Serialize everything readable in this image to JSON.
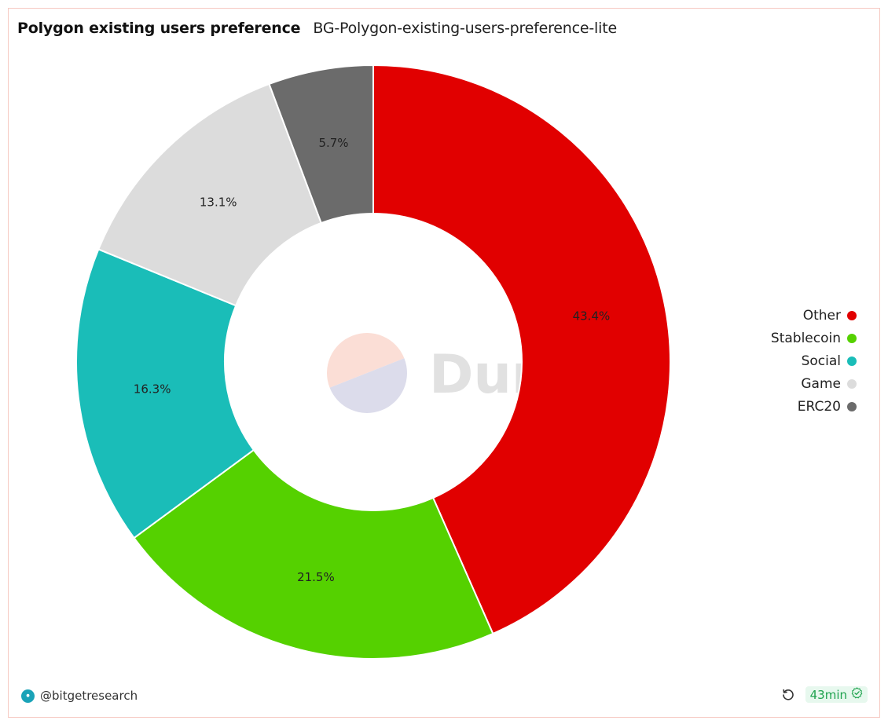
{
  "header": {
    "title": "Polygon existing users preference",
    "subtitle": "BG-Polygon-existing-users-preference-lite"
  },
  "watermark": {
    "text": "Dune",
    "colors": [
      "#fbded6",
      "#dcdceb"
    ]
  },
  "chart_data": {
    "type": "pie",
    "donut": true,
    "title": "Polygon existing users preference",
    "start_angle_deg": 0,
    "direction": "clockwise",
    "series": [
      {
        "name": "Other",
        "value": 43.4,
        "label": "43.4%",
        "color": "#e10000"
      },
      {
        "name": "Stablecoin",
        "value": 21.5,
        "label": "21.5%",
        "color": "#55d100"
      },
      {
        "name": "Social",
        "value": 16.3,
        "label": "16.3%",
        "color": "#1abdb8"
      },
      {
        "name": "Game",
        "value": 13.1,
        "label": "13.1%",
        "color": "#dcdcdc"
      },
      {
        "name": "ERC20",
        "value": 5.7,
        "label": "5.7%",
        "color": "#6b6b6b"
      }
    ],
    "legend_position": "right"
  },
  "legend": {
    "items": [
      {
        "label": "Other",
        "color": "#e10000"
      },
      {
        "label": "Stablecoin",
        "color": "#55d100"
      },
      {
        "label": "Social",
        "color": "#1abdb8"
      },
      {
        "label": "Game",
        "color": "#dcdcdc"
      },
      {
        "label": "ERC20",
        "color": "#6b6b6b"
      }
    ]
  },
  "footer": {
    "author": "@bitgetresearch",
    "avatar_icon": "bitget-avatar",
    "refresh_icon": "refresh-icon",
    "age": "43min",
    "age_icon": "verified-check-icon"
  }
}
